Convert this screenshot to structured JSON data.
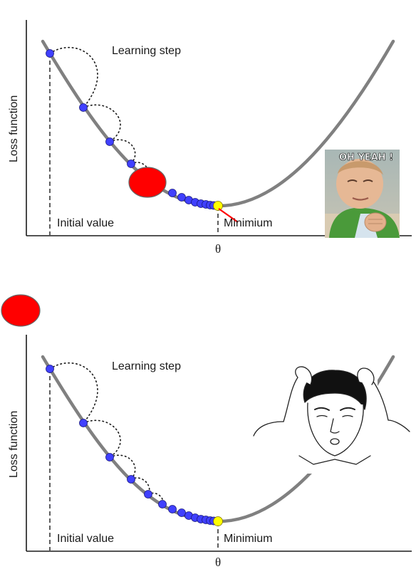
{
  "colors": {
    "curve": "#808080",
    "step_marker": "#4040ff",
    "step_marker_stroke": "#1a1a80",
    "minimum_marker": "#ffff00",
    "ball": "#ff0000",
    "axis": "#1a1a1a"
  },
  "top_panel": {
    "learning_step_label": "Learning step",
    "y_axis_label": "Loss function",
    "initial_value_label": "Initial value",
    "minimum_label": "Minimium",
    "x_axis_label": "θ",
    "meme": {
      "icon": "success-kid-meme",
      "caption": "OH YEAH !"
    }
  },
  "bottom_panel": {
    "learning_step_label": "Learning step",
    "y_axis_label": "Loss function",
    "initial_value_label": "Initial value",
    "minimum_label": "Minimium",
    "x_axis_label": "θ",
    "meme": {
      "icon": "confused-face-meme"
    }
  }
}
